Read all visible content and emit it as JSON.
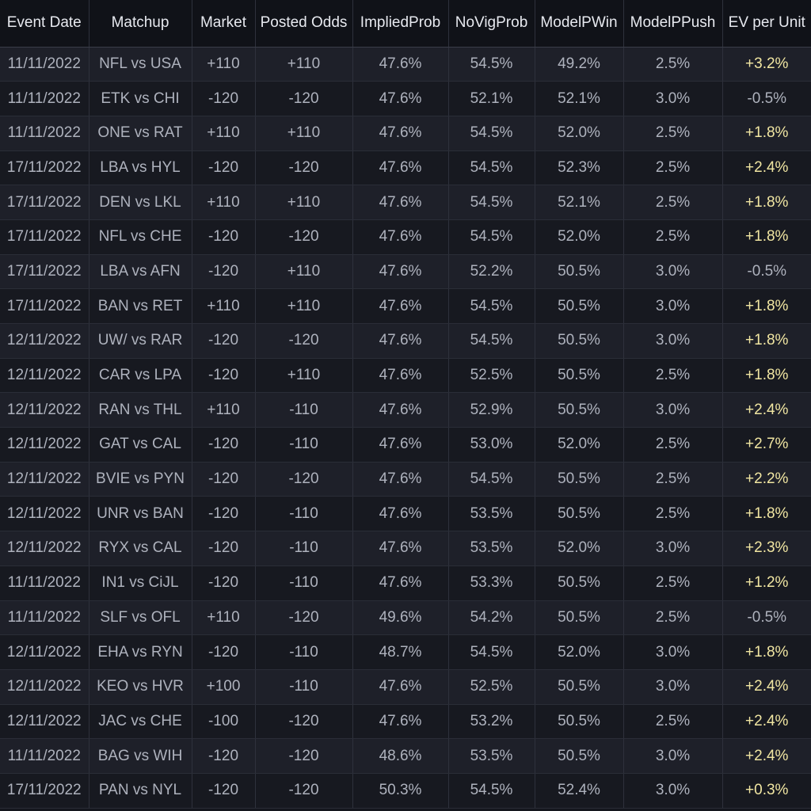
{
  "table": {
    "columns": [
      "Event Date",
      "Matchup",
      "Market",
      "Posted Odds",
      "ImpliedProb",
      "NoVigProb",
      "ModelPWin",
      "ModelPPush",
      "EV per Unit"
    ],
    "rows": [
      [
        "11/11/2022",
        "NFL vs USA",
        "+110",
        "+110",
        "47.6%",
        "54.5%",
        "49.2%",
        "2.5%",
        "+3.2%"
      ],
      [
        "11/11/2022",
        "ETK vs CHI",
        "-120",
        "-120",
        "47.6%",
        "52.1%",
        "52.1%",
        "3.0%",
        "-0.5%"
      ],
      [
        "11/11/2022",
        "ONE vs RAT",
        "+110",
        "+110",
        "47.6%",
        "54.5%",
        "52.0%",
        "2.5%",
        "+1.8%"
      ],
      [
        "17/11/2022",
        "LBA vs HYL",
        "-120",
        "-120",
        "47.6%",
        "54.5%",
        "52.3%",
        "2.5%",
        "+2.4%"
      ],
      [
        "17/11/2022",
        "DEN vs LKL",
        "+110",
        "+110",
        "47.6%",
        "54.5%",
        "52.1%",
        "2.5%",
        "+1.8%"
      ],
      [
        "17/11/2022",
        "NFL vs CHE",
        "-120",
        "-120",
        "47.6%",
        "54.5%",
        "52.0%",
        "2.5%",
        "+1.8%"
      ],
      [
        "17/11/2022",
        "LBA vs AFN",
        "-120",
        "+110",
        "47.6%",
        "52.2%",
        "50.5%",
        "3.0%",
        "-0.5%"
      ],
      [
        "17/11/2022",
        "BAN vs RET",
        "+110",
        "+110",
        "47.6%",
        "54.5%",
        "50.5%",
        "3.0%",
        "+1.8%"
      ],
      [
        "12/11/2022",
        "UW/ vs RAR",
        "-120",
        "-120",
        "47.6%",
        "54.5%",
        "50.5%",
        "3.0%",
        "+1.8%"
      ],
      [
        "12/11/2022",
        "CAR vs LPA",
        "-120",
        "+110",
        "47.6%",
        "52.5%",
        "50.5%",
        "2.5%",
        "+1.8%"
      ],
      [
        "12/11/2022",
        "RAN vs THL",
        "+110",
        "-110",
        "47.6%",
        "52.9%",
        "50.5%",
        "3.0%",
        "+2.4%"
      ],
      [
        "12/11/2022",
        "GAT vs CAL",
        "-120",
        "-110",
        "47.6%",
        "53.0%",
        "52.0%",
        "2.5%",
        "+2.7%"
      ],
      [
        "12/11/2022",
        "BVIE vs PYN",
        "-120",
        "-120",
        "47.6%",
        "54.5%",
        "50.5%",
        "2.5%",
        "+2.2%"
      ],
      [
        "12/11/2022",
        "UNR vs BAN",
        "-120",
        "-110",
        "47.6%",
        "53.5%",
        "50.5%",
        "2.5%",
        "+1.8%"
      ],
      [
        "12/11/2022",
        "RYX vs CAL",
        "-120",
        "-110",
        "47.6%",
        "53.5%",
        "52.0%",
        "3.0%",
        "+2.3%"
      ],
      [
        "11/11/2022",
        "IN1 vs CiJL",
        "-120",
        "-110",
        "47.6%",
        "53.3%",
        "50.5%",
        "2.5%",
        "+1.2%"
      ],
      [
        "11/11/2022",
        "SLF vs OFL",
        "+110",
        "-120",
        "49.6%",
        "54.2%",
        "50.5%",
        "2.5%",
        "-0.5%"
      ],
      [
        "12/11/2022",
        "EHA vs RYN",
        "-120",
        "-110",
        "48.7%",
        "54.5%",
        "52.0%",
        "3.0%",
        "+1.8%"
      ],
      [
        "12/11/2022",
        "KEO vs HVR",
        "+100",
        "-110",
        "47.6%",
        "52.5%",
        "50.5%",
        "3.0%",
        "+2.4%"
      ],
      [
        "12/11/2022",
        "JAC vs CHE",
        "-100",
        "-120",
        "47.6%",
        "53.2%",
        "50.5%",
        "2.5%",
        "+2.4%"
      ],
      [
        "11/11/2022",
        "BAG vs WIH",
        "-120",
        "-120",
        "48.6%",
        "53.5%",
        "50.5%",
        "3.0%",
        "+2.4%"
      ],
      [
        "17/11/2022",
        "PAN vs NYL",
        "-120",
        "-120",
        "50.3%",
        "54.5%",
        "52.4%",
        "3.0%",
        "+0.3%"
      ]
    ]
  },
  "colors": {
    "background": "#14161d",
    "header_text": "#e7e9ef",
    "cell_text": "#aeb2bd",
    "ev_positive": "#f1e6a2",
    "ev_negative": "#aeb2bd"
  }
}
